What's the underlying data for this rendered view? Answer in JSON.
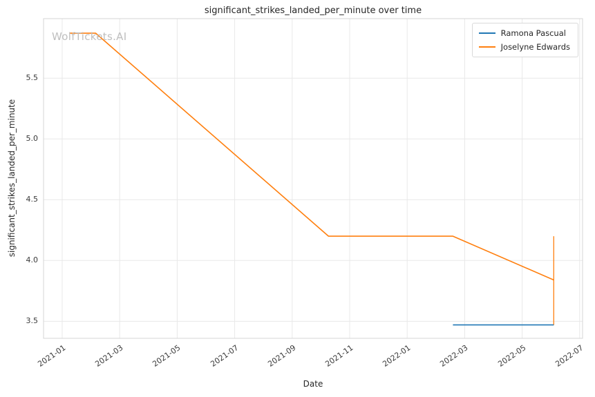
{
  "watermark": "WolfTickets.AI",
  "chart_data": {
    "type": "line",
    "title": "significant_strikes_landed_per_minute over time",
    "xlabel": "Date",
    "ylabel": "significant_strikes_landed_per_minute",
    "x_ticks": [
      "2021-01",
      "2021-03",
      "2021-05",
      "2021-07",
      "2021-09",
      "2021-11",
      "2022-01",
      "2022-03",
      "2022-05",
      "2022-07"
    ],
    "y_ticks": [
      3.5,
      4.0,
      4.5,
      5.0,
      5.5
    ],
    "xlim_months": [
      -0.65,
      18.1
    ],
    "ylim": [
      3.36,
      5.99
    ],
    "grid": true,
    "legend_position": "upper right",
    "series": [
      {
        "name": "Ramona Pascual",
        "color": "#1f77b4",
        "points": [
          [
            "2022-02-19",
            3.47
          ],
          [
            "2022-06-04",
            3.47
          ]
        ]
      },
      {
        "name": "Joselyne Edwards",
        "color": "#ff7f0e",
        "points": [
          [
            "2021-01-09",
            5.87
          ],
          [
            "2021-02-06",
            5.87
          ],
          [
            "2021-10-09",
            4.2
          ],
          [
            "2022-02-19",
            4.2
          ],
          [
            "2022-06-04",
            3.84
          ]
        ]
      }
    ],
    "annotations": [
      {
        "type": "vertical-segment",
        "x": "2022-06-04",
        "y_from": 3.47,
        "y_to": 4.2,
        "color": "#ff7f0e"
      }
    ]
  }
}
